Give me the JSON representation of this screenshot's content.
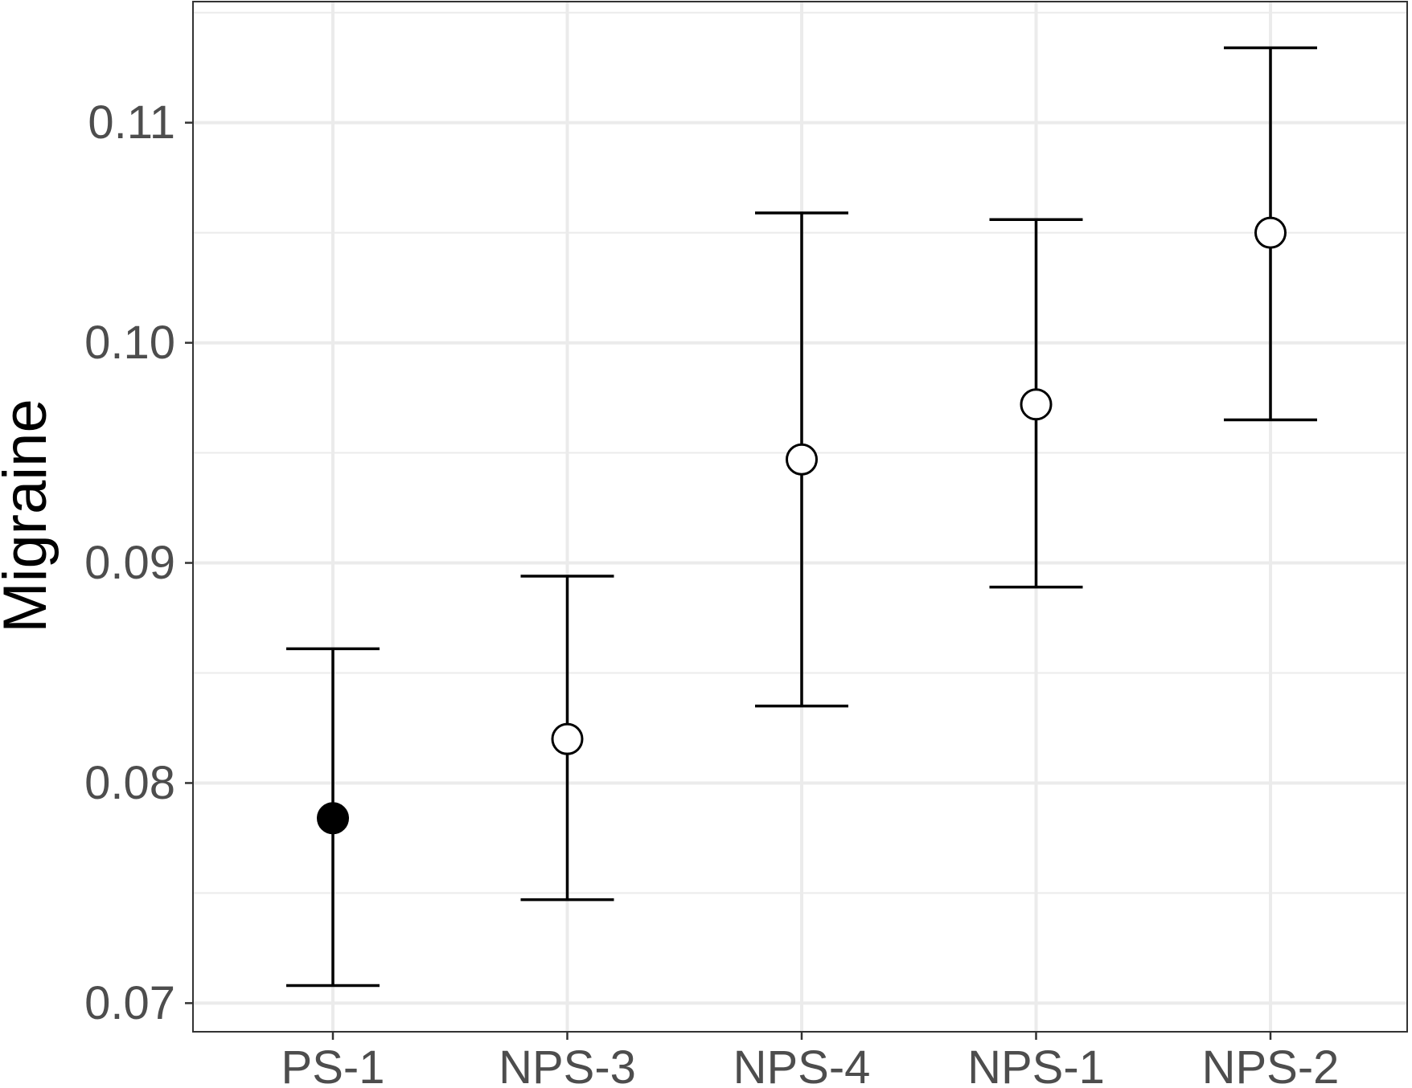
{
  "chart_data": {
    "type": "scatter",
    "subtype": "point-with-error-bars",
    "ylabel": "Migraine",
    "xlabel": "",
    "categories": [
      "PS-1",
      "NPS-3",
      "NPS-4",
      "NPS-1",
      "NPS-2"
    ],
    "points": [
      {
        "category": "PS-1",
        "estimate": 0.0784,
        "lower": 0.0708,
        "upper": 0.0861,
        "filled": true
      },
      {
        "category": "NPS-3",
        "estimate": 0.082,
        "lower": 0.0747,
        "upper": 0.0894,
        "filled": false
      },
      {
        "category": "NPS-4",
        "estimate": 0.0947,
        "lower": 0.0835,
        "upper": 0.1059,
        "filled": false
      },
      {
        "category": "NPS-1",
        "estimate": 0.0972,
        "lower": 0.0889,
        "upper": 0.1056,
        "filled": false
      },
      {
        "category": "NPS-2",
        "estimate": 0.105,
        "lower": 0.0965,
        "upper": 0.1134,
        "filled": false
      }
    ],
    "y_ticks": [
      0.07,
      0.08,
      0.09,
      0.1,
      0.11
    ],
    "y_tick_labels": [
      "0.07",
      "0.08",
      "0.09",
      "0.10",
      "0.11"
    ],
    "ylim": [
      0.0687,
      0.1155
    ],
    "grid": true,
    "legend": "none",
    "colors": {
      "points": "#000000",
      "grid": "#ebebeb",
      "panel_border": "#333333",
      "tick_text": "#4d4d4d"
    }
  }
}
